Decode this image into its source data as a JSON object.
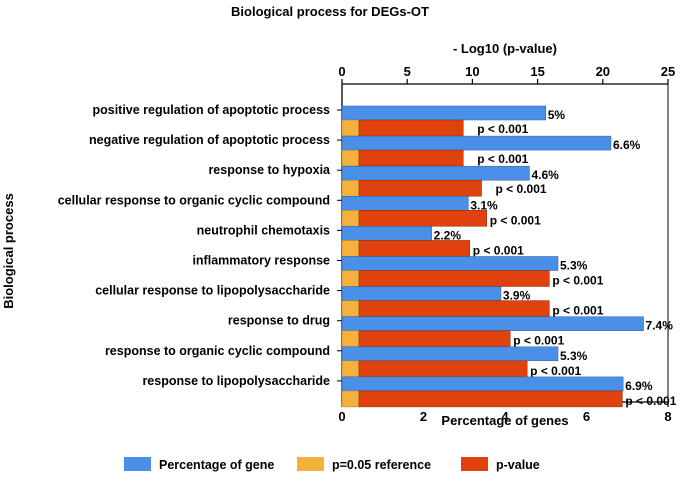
{
  "chart_data": {
    "type": "bar",
    "title": "Biological process for DEGs-OT",
    "xlabel": "Percentage of genes",
    "x2label": "- Log10 (p-value)",
    "ylabel": "Biological process",
    "xlim": [
      0,
      8
    ],
    "x2lim": [
      0,
      25
    ],
    "xticks": [
      "0",
      "2",
      "4",
      "6",
      "8"
    ],
    "x2ticks": [
      "0",
      "5",
      "10",
      "15",
      "20",
      "25"
    ],
    "categories": [
      "positive regulation of apoptotic process",
      "negative regulation of apoptotic process",
      "response to hypoxia",
      "cellular response to organic cyclic compound",
      "neutrophil chemotaxis",
      "inflammatory response",
      "cellular response to lipopolysaccharide",
      "response to drug",
      "response to organic cyclic compound",
      "response to lipopolysaccharide"
    ],
    "series": [
      {
        "name": "Percentage of gene",
        "axis": "bottom",
        "color": "#4a8fe8",
        "values": [
          5.0,
          6.6,
          4.6,
          3.1,
          2.2,
          5.3,
          3.9,
          7.4,
          5.3,
          6.9
        ],
        "labels": [
          "5%",
          "6.6%",
          "4.6%",
          "3.1%",
          "2.2%",
          "5.3%",
          "3.9%",
          "7.4%",
          "5.3%",
          "6.9%"
        ]
      },
      {
        "name": "p=0.05 reference",
        "axis": "top",
        "color": "#f5b13d",
        "values": [
          1.3,
          1.3,
          1.3,
          1.3,
          1.3,
          1.3,
          1.3,
          1.3,
          1.3,
          1.3
        ]
      },
      {
        "name": "p-value",
        "axis": "top",
        "color": "#e0420d",
        "values": [
          9.3,
          9.3,
          10.7,
          11.1,
          9.8,
          15.9,
          15.9,
          12.9,
          14.2,
          21.5
        ],
        "labels": [
          "p < 0.001",
          "p < 0.001",
          "p < 0.001",
          "p < 0.001",
          "p < 0.001",
          "p < 0.001",
          "p < 0.001",
          "p < 0.001",
          "p < 0.001",
          "p < 0.001"
        ]
      }
    ],
    "legend_position": "bottom"
  }
}
